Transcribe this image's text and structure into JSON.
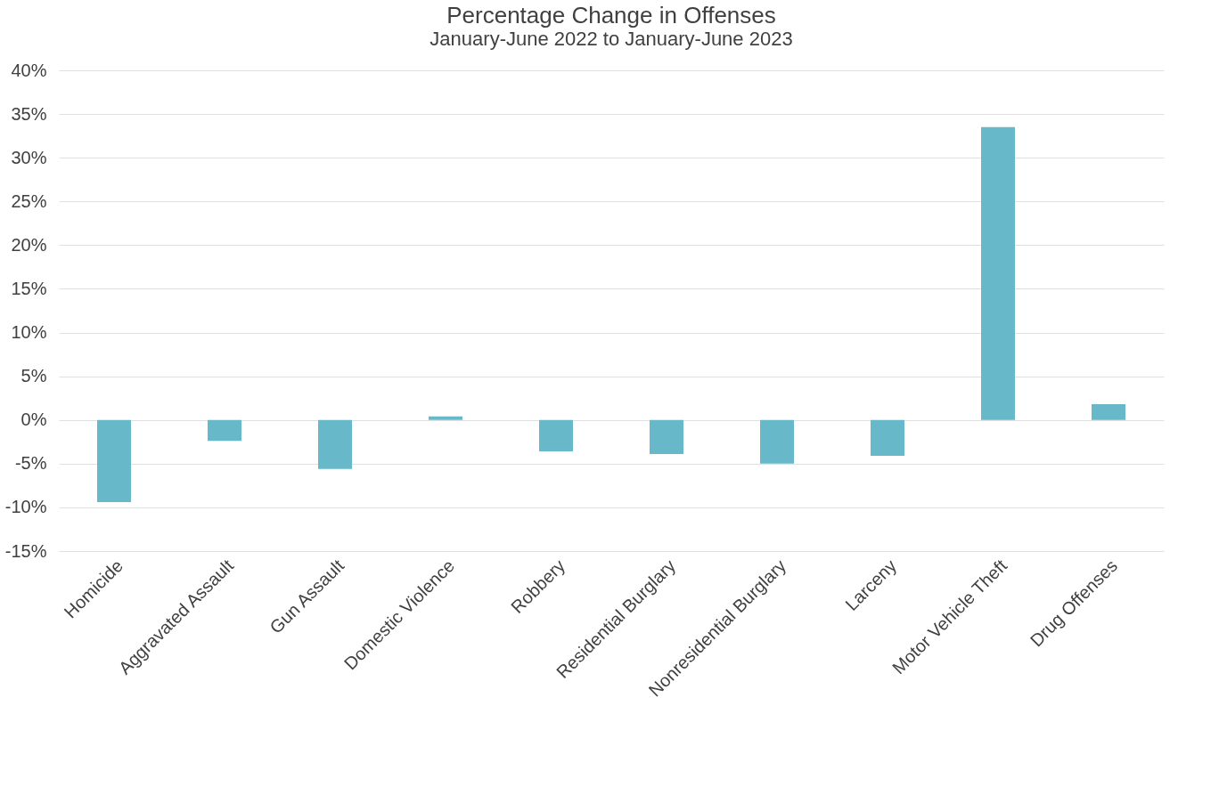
{
  "chart_data": {
    "type": "bar",
    "title": "Percentage Change in Offenses",
    "subtitle": "January-June 2022 to January-June 2023",
    "categories": [
      "Homicide",
      "Aggravated Assault",
      "Gun Assault",
      "Domestic Violence",
      "Robbery",
      "Residential Burglary",
      "Nonresidential Burglary",
      "Larceny",
      "Motor Vehicle Theft",
      "Drug Offenses"
    ],
    "values": [
      -9.4,
      -2.4,
      -5.6,
      0.4,
      -3.6,
      -3.9,
      -5.0,
      -4.1,
      33.5,
      1.8
    ],
    "color": "#67b9ca",
    "ylim": [
      -15,
      40
    ],
    "yticks": [
      {
        "value": -15,
        "label": "-15%"
      },
      {
        "value": -10,
        "label": "-10%"
      },
      {
        "value": -5,
        "label": "-5%"
      },
      {
        "value": 0,
        "label": "0%"
      },
      {
        "value": 5,
        "label": "5%"
      },
      {
        "value": 10,
        "label": "10%"
      },
      {
        "value": 15,
        "label": "15%"
      },
      {
        "value": 20,
        "label": "20%"
      },
      {
        "value": 25,
        "label": "25%"
      },
      {
        "value": 30,
        "label": "30%"
      },
      {
        "value": 35,
        "label": "35%"
      },
      {
        "value": 40,
        "label": "40%"
      }
    ],
    "grid": "y"
  }
}
